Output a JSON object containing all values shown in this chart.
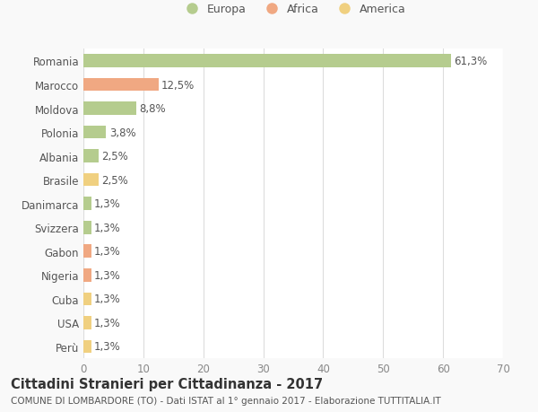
{
  "countries": [
    "Romania",
    "Marocco",
    "Moldova",
    "Polonia",
    "Albania",
    "Brasile",
    "Danimarca",
    "Svizzera",
    "Gabon",
    "Nigeria",
    "Cuba",
    "USA",
    "Perù"
  ],
  "values": [
    61.3,
    12.5,
    8.8,
    3.8,
    2.5,
    2.5,
    1.3,
    1.3,
    1.3,
    1.3,
    1.3,
    1.3,
    1.3
  ],
  "labels": [
    "61,3%",
    "12,5%",
    "8,8%",
    "3,8%",
    "2,5%",
    "2,5%",
    "1,3%",
    "1,3%",
    "1,3%",
    "1,3%",
    "1,3%",
    "1,3%",
    "1,3%"
  ],
  "colors": [
    "#b5cc8e",
    "#f0a882",
    "#b5cc8e",
    "#b5cc8e",
    "#b5cc8e",
    "#f0d080",
    "#b5cc8e",
    "#b5cc8e",
    "#f0a882",
    "#f0a882",
    "#f0d080",
    "#f0d080",
    "#f0d080"
  ],
  "legend_labels": [
    "Europa",
    "Africa",
    "America"
  ],
  "legend_colors": [
    "#b5cc8e",
    "#f0a882",
    "#f0d080"
  ],
  "title1": "Cittadini Stranieri per Cittadinanza - 2017",
  "title2": "COMUNE DI LOMBARDORE (TO) - Dati ISTAT al 1° gennaio 2017 - Elaborazione TUTTITALIA.IT",
  "xlim": [
    0,
    70
  ],
  "xticks": [
    0,
    10,
    20,
    30,
    40,
    50,
    60,
    70
  ],
  "bg_color": "#f9f9f9",
  "plot_bg_color": "#ffffff",
  "grid_color": "#dddddd",
  "bar_height": 0.55,
  "label_fontsize": 8.5,
  "tick_fontsize": 8.5,
  "title1_fontsize": 10.5,
  "title2_fontsize": 7.5
}
